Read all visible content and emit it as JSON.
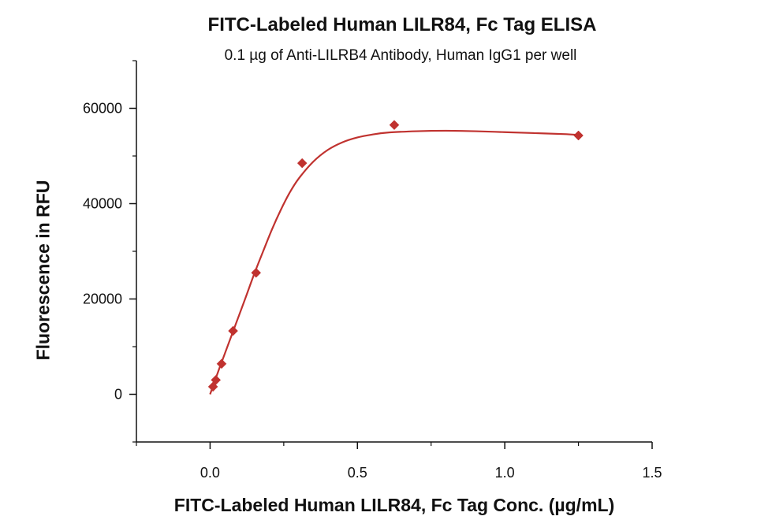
{
  "chart_data": {
    "type": "scatter",
    "title": "FITC-Labeled Human LILR84, Fc Tag ELISA",
    "subtitle": "0.1 µg of Anti-LILRB4 Antibody, Human IgG1 per well",
    "xlabel": "FITC-Labeled Human LILR84, Fc Tag Conc. (µg/mL)",
    "ylabel": "Fluorescence in RFU",
    "xlim": [
      -0.25,
      1.5
    ],
    "ylim": [
      -10000,
      70000
    ],
    "x_ticks": [
      0.0,
      0.5,
      1.0,
      1.5
    ],
    "x_tick_labels": [
      "0.0",
      "0.5",
      "1.0",
      "1.5"
    ],
    "y_ticks": [
      0,
      20000,
      40000,
      60000
    ],
    "y_tick_labels": [
      "0",
      "20000",
      "40000",
      "60000"
    ],
    "grid": false,
    "series": [
      {
        "marker": "diamond",
        "color": "#c0322f",
        "points": [
          {
            "x": 0.0098,
            "y": 1600
          },
          {
            "x": 0.0195,
            "y": 3000
          },
          {
            "x": 0.039,
            "y": 6400
          },
          {
            "x": 0.078,
            "y": 13300
          },
          {
            "x": 0.156,
            "y": 25500
          },
          {
            "x": 0.3125,
            "y": 48500
          },
          {
            "x": 0.625,
            "y": 56500
          },
          {
            "x": 1.25,
            "y": 54300
          }
        ]
      }
    ],
    "fit_curve": {
      "color": "#c0322f",
      "points": [
        [
          0.0,
          0
        ],
        [
          0.03,
          5200
        ],
        [
          0.06,
          10200
        ],
        [
          0.09,
          15200
        ],
        [
          0.12,
          20200
        ],
        [
          0.15,
          25300
        ],
        [
          0.18,
          30000
        ],
        [
          0.21,
          34600
        ],
        [
          0.24,
          38700
        ],
        [
          0.27,
          42300
        ],
        [
          0.3,
          45200
        ],
        [
          0.35,
          48800
        ],
        [
          0.4,
          51300
        ],
        [
          0.45,
          52900
        ],
        [
          0.5,
          53900
        ],
        [
          0.55,
          54500
        ],
        [
          0.6,
          54900
        ],
        [
          0.7,
          55200
        ],
        [
          0.8,
          55300
        ],
        [
          0.9,
          55200
        ],
        [
          1.0,
          55000
        ],
        [
          1.1,
          54800
        ],
        [
          1.2,
          54600
        ],
        [
          1.25,
          54400
        ]
      ]
    }
  }
}
